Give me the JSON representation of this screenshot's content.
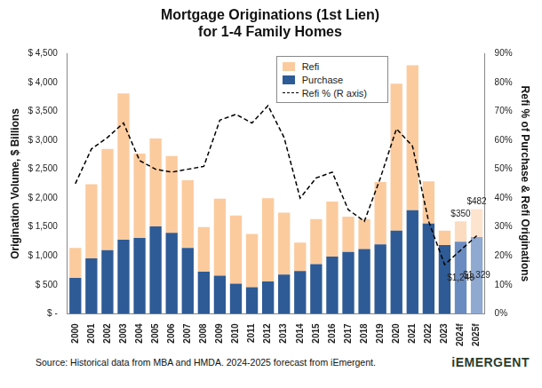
{
  "chart_data": {
    "type": "bar",
    "title": [
      "Mortgage Originations (1st Lien)",
      "for 1-4 Family Homes"
    ],
    "x_label": null,
    "y_label": "Origination Volume, $ Billions",
    "y2_label": "Refi % of Purchase & Refi Originations",
    "source": "Source:  Historical data from MBA and HMDA.  2024-2025 forecast from iEmergent.",
    "logo": "iEMERGENT",
    "stacked": true,
    "grid": false,
    "legend": "top",
    "categories": [
      "2000",
      "2001",
      "2002",
      "2003",
      "2004",
      "2005",
      "2006",
      "2007",
      "2008",
      "2009",
      "2010",
      "2011",
      "2012",
      "2013",
      "2014",
      "2015",
      "2016",
      "2017",
      "2018",
      "2019",
      "2020",
      "2021",
      "2022",
      "2023",
      "2024f",
      "2025f"
    ],
    "ylim": [
      0,
      4500
    ],
    "yticks": [
      {
        "value": 0,
        "label": "$ -"
      },
      {
        "value": 500,
        "label": "$ 500"
      },
      {
        "value": 1000,
        "label": "$ 1,000"
      },
      {
        "value": 1500,
        "label": "$ 1,500"
      },
      {
        "value": 2000,
        "label": "$ 2,000"
      },
      {
        "value": 2500,
        "label": "$ 2,500"
      },
      {
        "value": 3000,
        "label": "$ 3,000"
      },
      {
        "value": 3500,
        "label": "$ 3,500"
      },
      {
        "value": 4000,
        "label": "$ 4,000"
      },
      {
        "value": 4500,
        "label": "$ 4,500"
      }
    ],
    "y2lim": [
      0,
      90
    ],
    "y2ticks": [
      {
        "value": 0,
        "label": "0%"
      },
      {
        "value": 10,
        "label": "10%"
      },
      {
        "value": 20,
        "label": "20%"
      },
      {
        "value": 30,
        "label": "30%"
      },
      {
        "value": 40,
        "label": "40%"
      },
      {
        "value": 50,
        "label": "50%"
      },
      {
        "value": 60,
        "label": "60%"
      },
      {
        "value": 70,
        "label": "70%"
      },
      {
        "value": 80,
        "label": "80%"
      },
      {
        "value": 90,
        "label": "90%"
      }
    ],
    "series": [
      {
        "name": "Refi",
        "type": "bar",
        "color": "#fbcb9e",
        "colors": [
          "#fbcb9e",
          "#fbcb9e",
          "#fbcb9e",
          "#fbcb9e",
          "#fbcb9e",
          "#fbcb9e",
          "#fbcb9e",
          "#fbcb9e",
          "#fbcb9e",
          "#fbcb9e",
          "#fbcb9e",
          "#fbcb9e",
          "#fbcb9e",
          "#fbcb9e",
          "#fbcb9e",
          "#fbcb9e",
          "#fbcb9e",
          "#fbcb9e",
          "#fbcb9e",
          "#fbcb9e",
          "#fbcb9e",
          "#fbcb9e",
          "#fbcb9e",
          "#fbcb9e",
          "#fcdcc0",
          "#fde4cf"
        ],
        "values": [
          520,
          1280,
          1750,
          2530,
          1460,
          1520,
          1330,
          1170,
          770,
          1330,
          1180,
          920,
          1440,
          1070,
          490,
          780,
          950,
          610,
          520,
          1080,
          2540,
          2510,
          730,
          250,
          350,
          482
        ],
        "value_labels": [
          null,
          null,
          null,
          null,
          null,
          null,
          null,
          null,
          null,
          null,
          null,
          null,
          null,
          null,
          null,
          null,
          null,
          null,
          null,
          null,
          null,
          null,
          null,
          null,
          "$350",
          "$482"
        ]
      },
      {
        "name": "Purchase",
        "type": "bar",
        "color": "#2e5b95",
        "colors": [
          "#2e5b95",
          "#2e5b95",
          "#2e5b95",
          "#2e5b95",
          "#2e5b95",
          "#2e5b95",
          "#2e5b95",
          "#2e5b95",
          "#2e5b95",
          "#2e5b95",
          "#2e5b95",
          "#2e5b95",
          "#2e5b95",
          "#2e5b95",
          "#2e5b95",
          "#2e5b95",
          "#2e5b95",
          "#2e5b95",
          "#2e5b95",
          "#2e5b95",
          "#2e5b95",
          "#2e5b95",
          "#2e5b95",
          "#2e5b95",
          "#6b8cc0",
          "#8fa9d1"
        ],
        "values": [
          620,
          960,
          1100,
          1280,
          1310,
          1510,
          1400,
          1140,
          730,
          660,
          520,
          460,
          560,
          680,
          740,
          860,
          990,
          1070,
          1120,
          1200,
          1440,
          1790,
          1560,
          1190,
          1248,
          1329
        ],
        "value_labels": [
          null,
          null,
          null,
          null,
          null,
          null,
          null,
          null,
          null,
          null,
          null,
          null,
          null,
          null,
          null,
          null,
          null,
          null,
          null,
          null,
          null,
          null,
          null,
          null,
          "$1,248",
          "$1,329"
        ]
      },
      {
        "name": "Refi % (R axis)",
        "type": "line",
        "axis": "y2",
        "color": "#000000",
        "line_style": "dashed",
        "marker": "none",
        "values": [
          45,
          57,
          61,
          66,
          53,
          50,
          49,
          50,
          51,
          67,
          69,
          66,
          72,
          61,
          40,
          47,
          49,
          36,
          32,
          47,
          64,
          58,
          32,
          17,
          22,
          27
        ]
      }
    ]
  }
}
